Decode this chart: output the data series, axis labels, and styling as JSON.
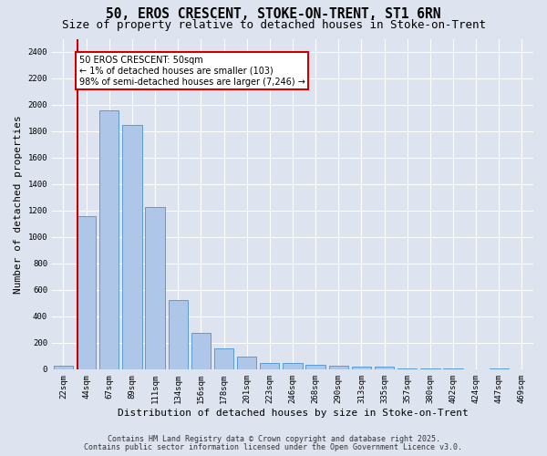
{
  "title1": "50, EROS CRESCENT, STOKE-ON-TRENT, ST1 6RN",
  "title2": "Size of property relative to detached houses in Stoke-on-Trent",
  "xlabel": "Distribution of detached houses by size in Stoke-on-Trent",
  "ylabel": "Number of detached properties",
  "categories": [
    "22sqm",
    "44sqm",
    "67sqm",
    "89sqm",
    "111sqm",
    "134sqm",
    "156sqm",
    "178sqm",
    "201sqm",
    "223sqm",
    "246sqm",
    "268sqm",
    "290sqm",
    "313sqm",
    "335sqm",
    "357sqm",
    "380sqm",
    "402sqm",
    "424sqm",
    "447sqm",
    "469sqm"
  ],
  "values": [
    25,
    1160,
    1960,
    1850,
    1230,
    520,
    275,
    160,
    95,
    50,
    45,
    35,
    25,
    20,
    20,
    5,
    5,
    5,
    2,
    5,
    2
  ],
  "bar_color": "#aec6e8",
  "bar_edge_color": "#5b9bd5",
  "background_color": "#dde4f0",
  "grid_color": "#ffffff",
  "vline_color": "#cc0000",
  "annotation_box_text": "50 EROS CRESCENT: 50sqm\n← 1% of detached houses are smaller (103)\n98% of semi-detached houses are larger (7,246) →",
  "annotation_box_color": "#cc0000",
  "annotation_box_bg": "#ffffff",
  "ylim": [
    0,
    2500
  ],
  "yticks": [
    0,
    200,
    400,
    600,
    800,
    1000,
    1200,
    1400,
    1600,
    1800,
    2000,
    2200,
    2400
  ],
  "footer1": "Contains HM Land Registry data © Crown copyright and database right 2025.",
  "footer2": "Contains public sector information licensed under the Open Government Licence v3.0.",
  "title_fontsize": 10.5,
  "subtitle_fontsize": 9,
  "label_fontsize": 8,
  "tick_fontsize": 6.5,
  "annotation_fontsize": 7,
  "footer_fontsize": 6
}
